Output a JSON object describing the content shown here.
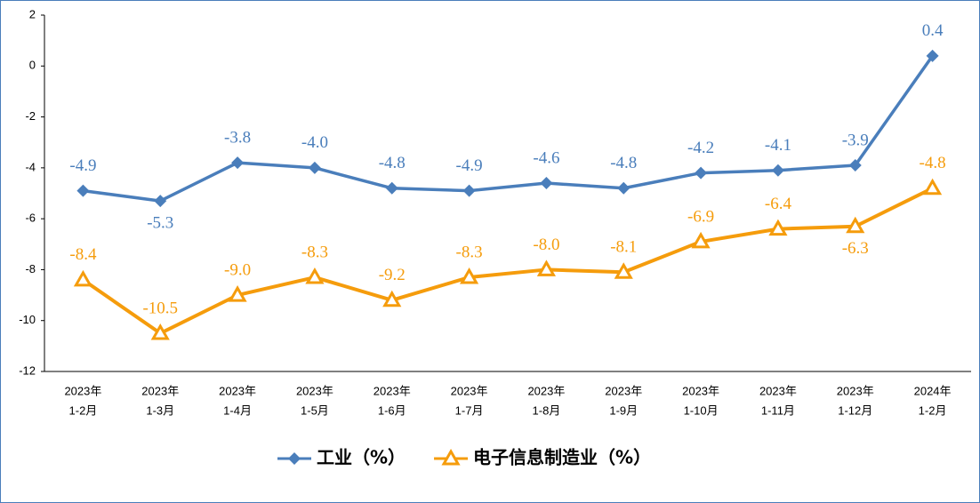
{
  "chart_data": {
    "type": "line",
    "categories": [
      [
        "2023年",
        "1-2月"
      ],
      [
        "2023年",
        "1-3月"
      ],
      [
        "2023年",
        "1-4月"
      ],
      [
        "2023年",
        "1-5月"
      ],
      [
        "2023年",
        "1-6月"
      ],
      [
        "2023年",
        "1-7月"
      ],
      [
        "2023年",
        "1-8月"
      ],
      [
        "2023年",
        "1-9月"
      ],
      [
        "2023年",
        "1-10月"
      ],
      [
        "2023年",
        "1-11月"
      ],
      [
        "2023年",
        "1-12月"
      ],
      [
        "2024年",
        "1-2月"
      ]
    ],
    "series": [
      {
        "name": "工业（%）",
        "color": "#4a7ebb",
        "marker": "diamond",
        "values": [
          -4.9,
          -5.3,
          -3.8,
          -4.0,
          -4.8,
          -4.9,
          -4.6,
          -4.8,
          -4.2,
          -4.1,
          -3.9,
          0.4
        ],
        "value_labels": [
          "-4.9",
          "-5.3",
          "-3.8",
          "-4.0",
          "-4.8",
          "-4.9",
          "-4.6",
          "-4.8",
          "-4.2",
          "-4.1",
          "-3.9",
          "0.4"
        ]
      },
      {
        "name": "电子信息制造业（%）",
        "color": "#f59c0c",
        "marker": "triangle",
        "values": [
          -8.4,
          -10.5,
          -9.0,
          -8.3,
          -9.2,
          -8.3,
          -8.0,
          -8.1,
          -6.9,
          -6.4,
          -6.3,
          -4.8
        ],
        "value_labels": [
          "-8.4",
          "-10.5",
          "-9.0",
          "-8.3",
          "-9.2",
          "-8.3",
          "-8.0",
          "-8.1",
          "-6.9",
          "-6.4",
          "-6.3",
          "-4.8"
        ]
      }
    ],
    "ylim": [
      -12,
      2
    ],
    "yticks": [
      -12,
      -10,
      -8,
      -6,
      -4,
      -2,
      0,
      2
    ],
    "grid": false,
    "legend": "bottom"
  }
}
